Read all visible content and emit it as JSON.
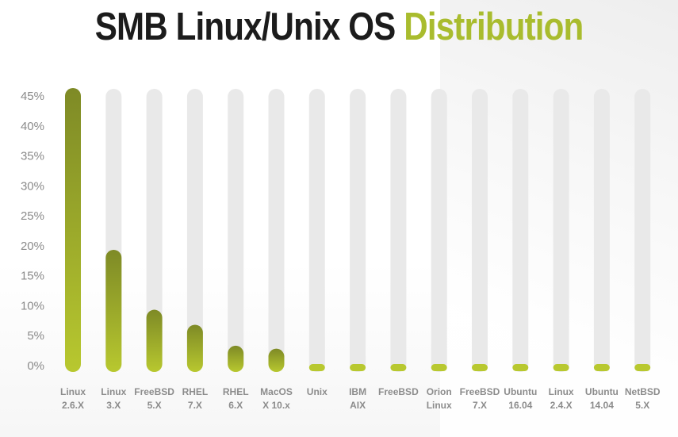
{
  "title": {
    "main": "SMB Linux/Unix OS",
    "accent": "Distribution"
  },
  "colors": {
    "accent": "#a9bc2e",
    "bar_top": "#7e8a26",
    "bar_bottom": "#b8c82f",
    "track": "#e9e9e9",
    "title": "#1c1c1c",
    "label": "#8a8a8a"
  },
  "chart_data": {
    "type": "bar",
    "title": "SMB Linux/Unix OS Distribution",
    "xlabel": "",
    "ylabel": "",
    "ylim": [
      0,
      45
    ],
    "yticks": [
      0,
      5,
      10,
      15,
      20,
      25,
      30,
      35,
      40,
      45
    ],
    "ytick_labels": [
      "0%",
      "5%",
      "10%",
      "15%",
      "20%",
      "25%",
      "30%",
      "35%",
      "40%",
      "45%"
    ],
    "grid": false,
    "legend": "none",
    "categories": [
      [
        "Linux",
        "2.6.X"
      ],
      [
        "Linux",
        "3.X"
      ],
      [
        "FreeBSD",
        "5.X"
      ],
      [
        "RHEL",
        "7.X"
      ],
      [
        "RHEL",
        "6.X"
      ],
      [
        "MacOS",
        "X 10.x"
      ],
      [
        "Unix"
      ],
      [
        "IBM",
        "AIX"
      ],
      [
        "FreeBSD"
      ],
      [
        "Orion",
        "Linux"
      ],
      [
        "FreeBSD",
        "7.X"
      ],
      [
        "Ubuntu",
        "16.04"
      ],
      [
        "Linux",
        "2.4.X"
      ],
      [
        "Ubuntu",
        "14.04"
      ],
      [
        "NetBSD",
        "5.X"
      ]
    ],
    "values": [
      45,
      18,
      8,
      5.5,
      2,
      1.5,
      0.5,
      0.5,
      0.5,
      0.5,
      0.5,
      0.5,
      0.5,
      0.5,
      0.5
    ]
  }
}
